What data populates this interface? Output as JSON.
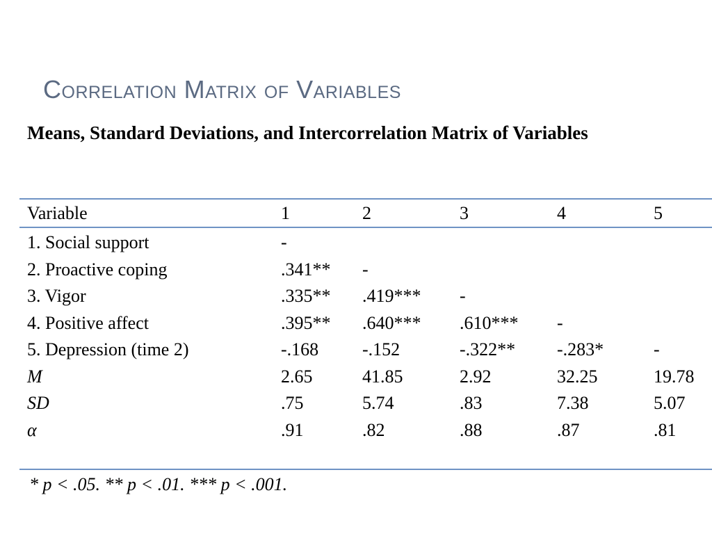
{
  "slide": {
    "title": "Correlation Matrix of Variables"
  },
  "table": {
    "caption": "Means, Standard Deviations, and Intercorrelation Matrix of Variables",
    "headers": [
      "Variable",
      "1",
      "2",
      "3",
      "4",
      "5"
    ],
    "rows": [
      {
        "label": "1. Social support",
        "label_italic": false,
        "cells": [
          "-",
          "",
          "",
          "",
          ""
        ]
      },
      {
        "label": "2. Proactive coping",
        "label_italic": false,
        "cells": [
          ".341**",
          "-",
          "",
          "",
          ""
        ]
      },
      {
        "label": "3. Vigor",
        "label_italic": false,
        "cells": [
          ".335**",
          ".419***",
          "-",
          "",
          ""
        ]
      },
      {
        "label": "4. Positive affect",
        "label_italic": false,
        "cells": [
          ".395**",
          ".640***",
          ".610***",
          "-",
          ""
        ]
      },
      {
        "label": "5. Depression (time 2)",
        "label_italic": false,
        "cells": [
          "-.168",
          "-.152",
          "-.322**",
          "-.283*",
          "-"
        ]
      },
      {
        "label": "M",
        "label_italic": true,
        "cells": [
          "2.65",
          "41.85",
          "2.92",
          "32.25",
          "19.78"
        ]
      },
      {
        "label": "SD",
        "label_italic": true,
        "cells": [
          ".75",
          "5.74",
          ".83",
          "7.38",
          "5.07"
        ]
      },
      {
        "label": "α",
        "label_italic": true,
        "cells": [
          ".91",
          ".82",
          ".88",
          ".87",
          ".81"
        ]
      }
    ],
    "footnote": "* p < .05. ** p < .01. *** p < .001."
  },
  "colors": {
    "title": "#5b6a82",
    "rule": "#6e93c4",
    "text": "#000000"
  }
}
